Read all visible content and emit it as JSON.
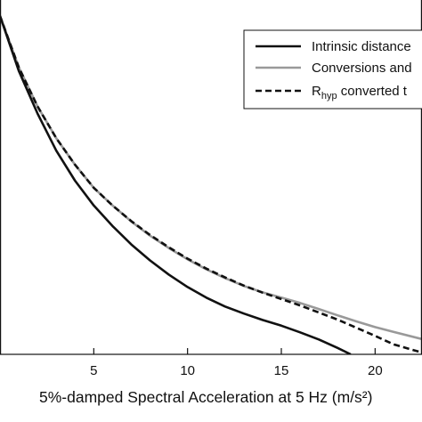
{
  "chart_data": {
    "type": "line",
    "title": "",
    "xlabel": "5%-damped Spectral Acceleration at 5 Hz (m/s²)",
    "ylabel": "",
    "xlim": [
      0,
      22.5
    ],
    "ylim": [
      0,
      1
    ],
    "xticks": [
      5,
      10,
      15,
      20
    ],
    "grid": false,
    "legend_position": "top-right",
    "series": [
      {
        "name": "Intrinsic distance",
        "legend_label": "Intrinsic distance",
        "color": "#111111",
        "dash": "solid",
        "x": [
          0,
          1,
          2,
          3,
          4,
          5,
          6,
          7,
          8,
          9,
          10,
          11,
          12,
          13,
          14,
          15,
          16,
          17,
          18,
          18.7
        ],
        "y": [
          0.955,
          0.8,
          0.68,
          0.575,
          0.49,
          0.42,
          0.362,
          0.31,
          0.265,
          0.225,
          0.19,
          0.16,
          0.135,
          0.115,
          0.097,
          0.081,
          0.062,
          0.042,
          0.018,
          0.0
        ]
      },
      {
        "name": "Conversions",
        "legend_label": "Conversions and",
        "color": "#999999",
        "dash": "solid",
        "x": [
          0,
          1,
          2,
          3,
          4,
          5,
          6,
          7,
          8,
          9,
          10,
          11,
          12,
          13,
          14,
          15,
          16,
          17,
          18,
          19,
          20,
          21,
          22.5
        ],
        "y": [
          0.955,
          0.81,
          0.7,
          0.61,
          0.535,
          0.47,
          0.42,
          0.375,
          0.335,
          0.3,
          0.268,
          0.24,
          0.215,
          0.193,
          0.175,
          0.16,
          0.145,
          0.128,
          0.11,
          0.093,
          0.077,
          0.063,
          0.043
        ]
      },
      {
        "name": "R_hyp converted",
        "legend_label": "R",
        "legend_subscript": "hyp",
        "legend_suffix": " converted t",
        "color": "#111111",
        "dash": "dashed",
        "x": [
          0,
          1,
          2,
          3,
          4,
          5,
          6,
          7,
          8,
          9,
          10,
          11,
          12,
          13,
          14,
          15,
          16,
          17,
          18,
          19,
          20,
          21,
          22.5
        ],
        "y": [
          0.955,
          0.81,
          0.7,
          0.61,
          0.535,
          0.47,
          0.42,
          0.376,
          0.337,
          0.302,
          0.27,
          0.242,
          0.217,
          0.194,
          0.174,
          0.156,
          0.138,
          0.118,
          0.098,
          0.075,
          0.052,
          0.028,
          0.005
        ]
      }
    ]
  }
}
